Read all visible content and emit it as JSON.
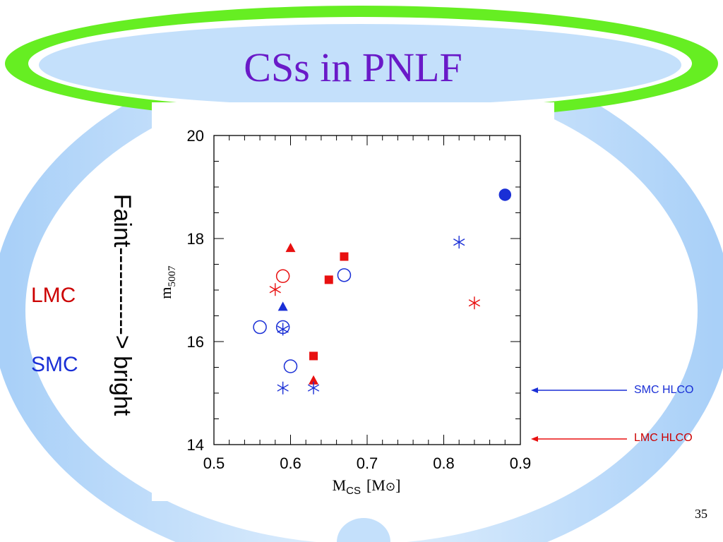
{
  "slide": {
    "title": "CSs in PNLF",
    "vertical_label": "Faint-----------> bright",
    "lmc_label": "LMC",
    "smc_label": "SMC",
    "annotation_smc": "SMC HLCO",
    "annotation_lmc": "LMC HLCO",
    "page_number": "35"
  },
  "colors": {
    "title": "#6a1ac8",
    "lmc_red": "#e81010",
    "smc_blue": "#1a2fd6",
    "green_ring": "#66ee22",
    "light_blue": "#c4e0fb"
  },
  "chart_data": {
    "type": "scatter",
    "xlabel_main": "M",
    "xlabel_sub": "CS",
    "xlabel_unit": "[M",
    "xlabel_close": "]",
    "ylabel_main": "m",
    "ylabel_sub": "5007",
    "xlim": [
      0.5,
      0.9
    ],
    "ylim": [
      14,
      20
    ],
    "xticks": [
      0.5,
      0.6,
      0.7,
      0.8,
      0.9
    ],
    "xtick_labels": [
      "0.5",
      "0.6",
      "0.7",
      "0.8",
      "0.9"
    ],
    "yticks": [
      14,
      16,
      18,
      20
    ],
    "ytick_labels": [
      "14",
      "16",
      "18",
      "20"
    ],
    "series": [
      {
        "color": "#e81010",
        "points": [
          {
            "x": 0.6,
            "y": 17.82,
            "marker": "triangle",
            "filled": true
          },
          {
            "x": 0.59,
            "y": 17.27,
            "marker": "circle",
            "filled": false
          },
          {
            "x": 0.58,
            "y": 17.01,
            "marker": "star",
            "filled": false
          },
          {
            "x": 0.67,
            "y": 17.65,
            "marker": "square",
            "filled": true
          },
          {
            "x": 0.65,
            "y": 17.2,
            "marker": "square",
            "filled": true
          },
          {
            "x": 0.63,
            "y": 15.72,
            "marker": "square",
            "filled": true
          },
          {
            "x": 0.63,
            "y": 15.25,
            "marker": "triangle",
            "filled": true
          },
          {
            "x": 0.84,
            "y": 16.75,
            "marker": "star",
            "filled": false
          }
        ]
      },
      {
        "color": "#1a2fd6",
        "points": [
          {
            "x": 0.88,
            "y": 18.85,
            "marker": "circle",
            "filled": true
          },
          {
            "x": 0.82,
            "y": 17.93,
            "marker": "star",
            "filled": false
          },
          {
            "x": 0.67,
            "y": 17.29,
            "marker": "circle",
            "filled": false
          },
          {
            "x": 0.59,
            "y": 16.68,
            "marker": "triangle",
            "filled": true
          },
          {
            "x": 0.56,
            "y": 16.28,
            "marker": "circle",
            "filled": false
          },
          {
            "x": 0.59,
            "y": 16.28,
            "marker": "circle",
            "filled": false
          },
          {
            "x": 0.59,
            "y": 16.24,
            "marker": "star",
            "filled": false
          },
          {
            "x": 0.6,
            "y": 15.52,
            "marker": "circle",
            "filled": false
          },
          {
            "x": 0.59,
            "y": 15.1,
            "marker": "star",
            "filled": false
          },
          {
            "x": 0.63,
            "y": 15.1,
            "marker": "star",
            "filled": false
          }
        ]
      }
    ]
  }
}
